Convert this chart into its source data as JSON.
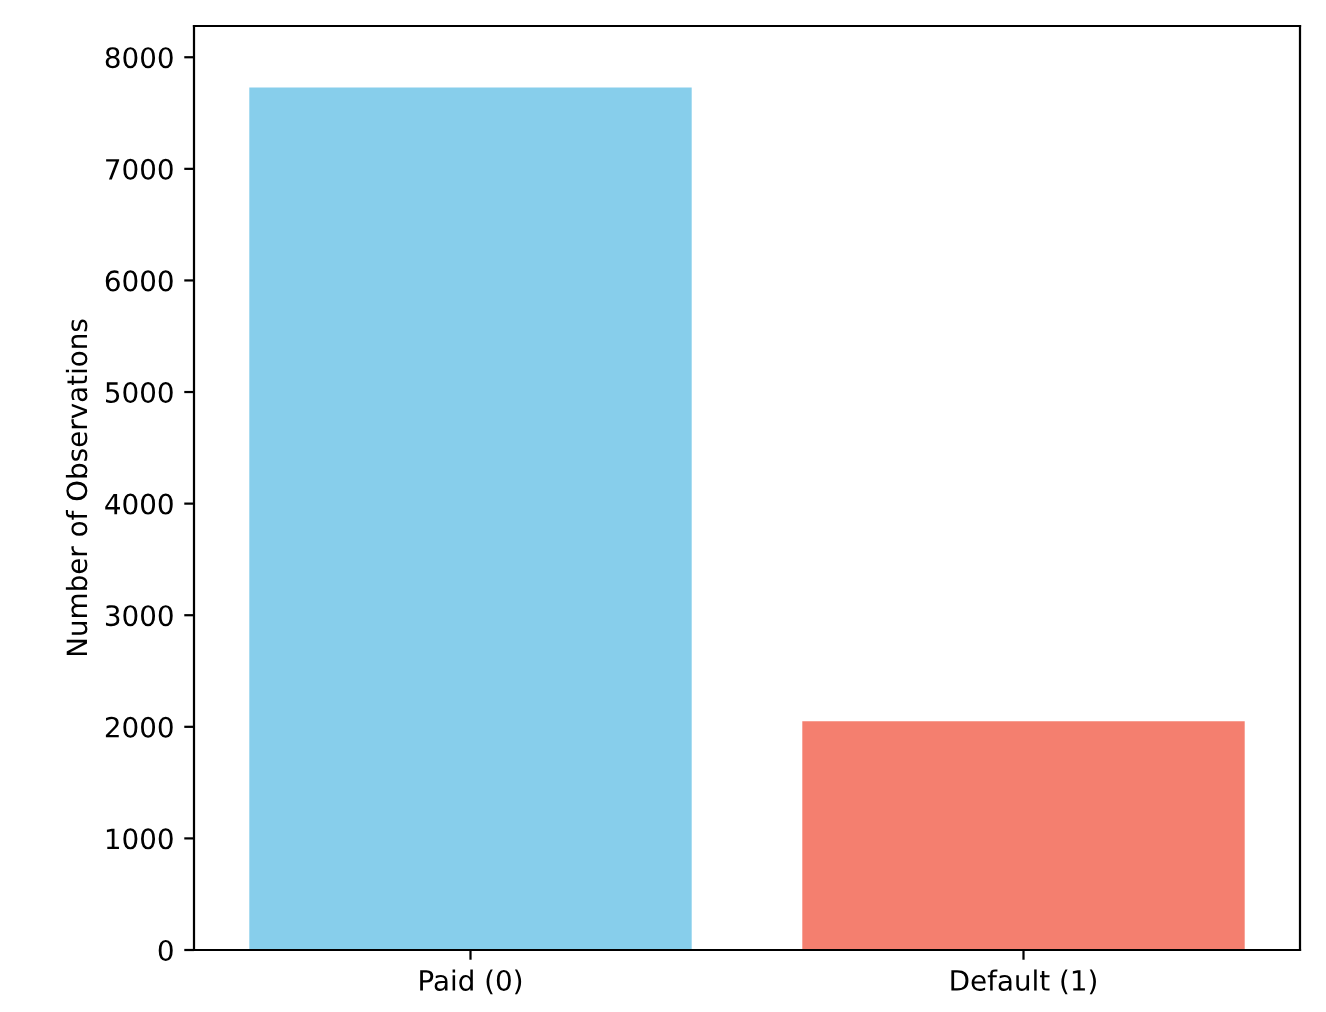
{
  "chart_data": {
    "type": "bar",
    "ylabel": "Number of Observations",
    "categories": [
      "Paid (0)",
      "Default (1)"
    ],
    "values": [
      7730,
      2050
    ],
    "colors": [
      "#87ceeb",
      "#f47f6f"
    ],
    "ylim": [
      0,
      8280
    ],
    "yticks": [
      0,
      1000,
      2000,
      3000,
      4000,
      5000,
      6000,
      7000,
      8000
    ],
    "grid": false
  }
}
